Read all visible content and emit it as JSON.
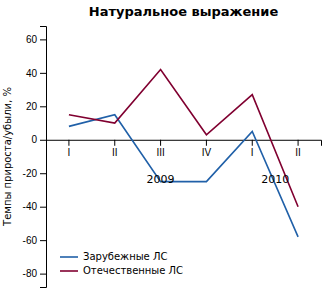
{
  "chart_data": {
    "type": "line",
    "title": "Натуральное выражение",
    "ylabel": "Темпы прироста/убыли, %",
    "categories": [
      "I",
      "II",
      "III",
      "IV",
      "I",
      "II"
    ],
    "series": [
      {
        "name": "Зарубежные ЛС",
        "color": "#2060a8",
        "values": [
          8,
          15,
          -25,
          -25,
          5,
          -58
        ]
      },
      {
        "name": "Отечественные ЛС",
        "color": "#800030",
        "values": [
          15,
          10,
          42,
          3,
          27,
          -40
        ]
      }
    ],
    "ylim": [
      -88,
      68
    ],
    "yticks": [
      -80,
      -60,
      -40,
      -20,
      0,
      20,
      40,
      60
    ],
    "grid": false,
    "legend": "lower left",
    "annotations": [
      {
        "text": "2009",
        "x": 2.0,
        "y": -21
      },
      {
        "text": "2010",
        "x": 4.5,
        "y": -21
      }
    ]
  }
}
